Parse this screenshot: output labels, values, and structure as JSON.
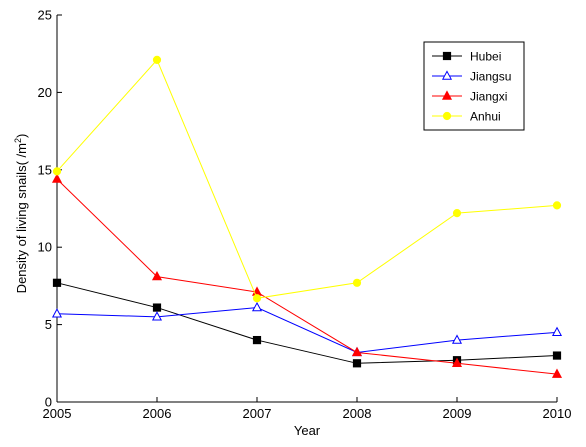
{
  "chart_data": {
    "type": "line",
    "title": "",
    "xlabel": "Year",
    "ylabel": "Density of living snails( /m²)",
    "ylabel_prefix": "Density of living snails( /m",
    "ylabel_superscript": "2",
    "ylabel_suffix": ")",
    "x": [
      2005,
      2006,
      2007,
      2008,
      2009,
      2010
    ],
    "xticks": [
      "2005",
      "2006",
      "2007",
      "2008",
      "2009",
      "2010"
    ],
    "ylim": [
      0,
      25
    ],
    "yticks": [
      "0",
      "5",
      "10",
      "15",
      "20",
      "25"
    ],
    "ytick_values": [
      0,
      5,
      10,
      15,
      20,
      25
    ],
    "grid": false,
    "legend_position": "top-right",
    "series": [
      {
        "name": "Hubei",
        "color": "#000000",
        "marker": "square-filled",
        "values": [
          7.7,
          6.1,
          4.0,
          2.5,
          2.7,
          3.0
        ]
      },
      {
        "name": "Jiangsu",
        "color": "#0000ff",
        "marker": "triangle-open",
        "values": [
          5.7,
          5.5,
          6.1,
          3.2,
          4.0,
          4.5
        ]
      },
      {
        "name": "Jiangxi",
        "color": "#ff0000",
        "marker": "triangle-filled",
        "values": [
          14.4,
          8.1,
          7.1,
          3.2,
          2.5,
          1.8
        ]
      },
      {
        "name": "Anhui",
        "color": "#ffff00",
        "marker": "circle-filled",
        "values": [
          14.9,
          22.1,
          6.7,
          7.7,
          12.2,
          12.7
        ]
      }
    ]
  }
}
